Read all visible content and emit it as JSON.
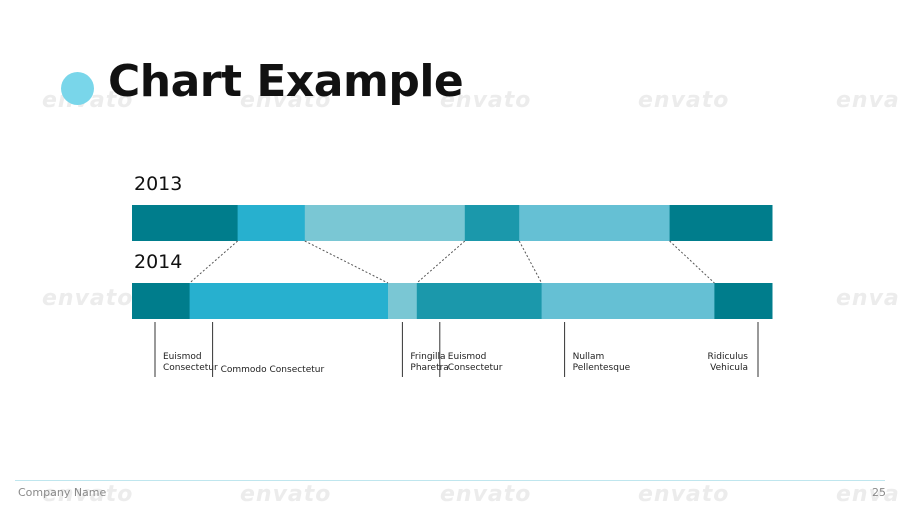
{
  "slide": {
    "title": "Chart Example",
    "company": "Company Name",
    "page_number": "25",
    "watermark": "envato"
  },
  "chart_data": {
    "type": "bar",
    "subtype": "stacked-horizontal-comparison",
    "total": 100,
    "rows": [
      {
        "label": "2013",
        "segments": [
          {
            "value": 16.5,
            "color": "#007d8c"
          },
          {
            "value": 10.5,
            "color": "#27b0cf"
          },
          {
            "value": 25,
            "color": "#7ac7d4"
          },
          {
            "value": 8.5,
            "color": "#1b98ab"
          },
          {
            "value": 23.5,
            "color": "#65c0d4"
          },
          {
            "value": 16,
            "color": "#007d8c"
          }
        ]
      },
      {
        "label": "2014",
        "segments": [
          {
            "value": 9,
            "color": "#007d8c"
          },
          {
            "value": 31,
            "color": "#27b0cf"
          },
          {
            "value": 4.5,
            "color": "#7ac7d4"
          },
          {
            "value": 19.5,
            "color": "#1b98ab"
          },
          {
            "value": 27,
            "color": "#65c0d4"
          },
          {
            "value": 9,
            "color": "#007d8c"
          }
        ]
      }
    ],
    "labels": [
      [
        "Euismod",
        "Consectetur"
      ],
      [
        "Commodo Consectetur"
      ],
      [
        "Fringilla",
        "Pharetra"
      ],
      [
        "Euismod",
        "Consectetur"
      ],
      [
        "Nullam",
        "Pellentesque"
      ],
      [
        "Ridiculus",
        "Vehicula"
      ]
    ]
  }
}
